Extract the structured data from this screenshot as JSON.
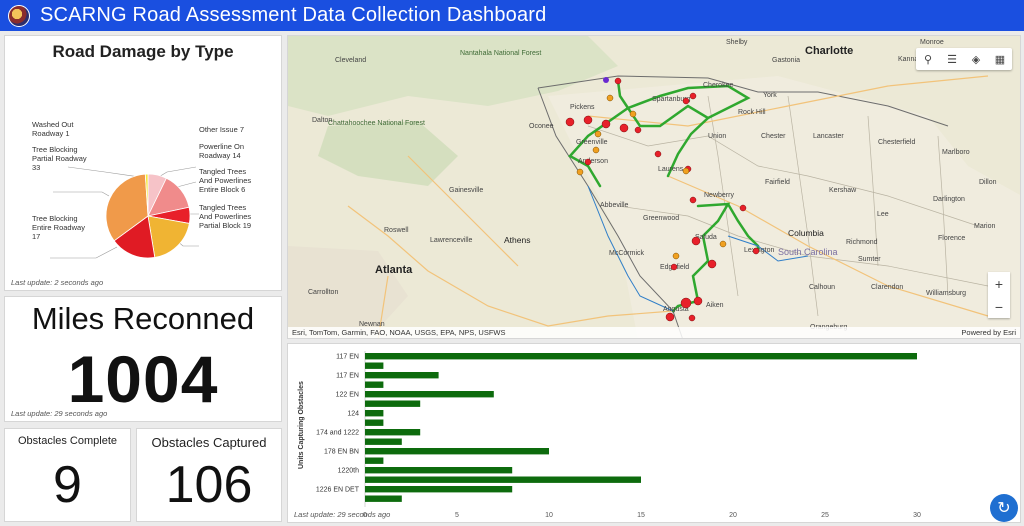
{
  "header": {
    "title": "SCARNG Road Assessment Data Collection Dashboard"
  },
  "pie": {
    "title": "Road Damage by Type",
    "last_update": "Last update: 2 seconds ago",
    "slices": [
      {
        "label": "Other Issue",
        "value": 7,
        "color": "#f6c3c8"
      },
      {
        "label": "Powerline On Roadway",
        "value": 14,
        "color": "#f08b8b"
      },
      {
        "label": "Tangled Trees And Powerlines Entire Block",
        "value": 6,
        "color": "#e8202a"
      },
      {
        "label": "Tangled Trees And Powerlines Partial Block",
        "value": 19,
        "color": "#f0b433"
      },
      {
        "label": "Tree Blocking Entire Roadway",
        "value": 17,
        "color": "#e01b24"
      },
      {
        "label": "Tree Blocking Partial Roadway",
        "value": 33,
        "color": "#f09a4a"
      },
      {
        "label": "Washed Out Roadway",
        "value": 1,
        "color": "#f5e83a"
      }
    ],
    "labels": {
      "washed": [
        "Washed Out",
        "Roadway 1"
      ],
      "tbpr": [
        "Tree Blocking",
        "Partial Roadway",
        "33"
      ],
      "tber": [
        "Tree Blocking",
        "Entire Roadway",
        "17"
      ],
      "other": [
        "Other Issue 7"
      ],
      "power": [
        "Powerline On",
        "Roadway 14"
      ],
      "tteb": [
        "Tangled Trees",
        "And Powerlines",
        "Entire Block 6"
      ],
      "ttpb": [
        "Tangled Trees",
        "And Powerlines",
        "Partial Block 19"
      ]
    }
  },
  "miles": {
    "title": "Miles Reconned",
    "value": "1004",
    "last_update": "Last update: 29 seconds ago"
  },
  "obstacles_complete": {
    "title": "Obstacles Complete",
    "value": "9"
  },
  "obstacles_captured": {
    "title": "Obstacles Captured",
    "value": "106"
  },
  "map": {
    "attribution": "Esri, TomTom, Garmin, FAO, NOAA, USGS, EPA, NPS, USFWS",
    "powered": "Powered by Esri",
    "zoom_in": "+",
    "zoom_out": "−",
    "cities_major": [
      "Atlanta",
      "Charlotte",
      "Columbia"
    ],
    "cities": [
      "Greenville",
      "Spartanburg",
      "Anderson",
      "Laurens",
      "Newberry",
      "Augusta",
      "Aiken",
      "Athens",
      "Gainesville",
      "Lexington",
      "Saluda",
      "Edgefield",
      "Greenwood",
      "Abbeville",
      "McCormick",
      "Pickens",
      "Oconee",
      "Union",
      "Chester",
      "Lancaster",
      "Fairfield",
      "Kershaw",
      "Lee",
      "Sumter",
      "Florence",
      "Marion",
      "Darlington",
      "Dillon",
      "Marlboro",
      "Chesterfield",
      "York",
      "Cherokee",
      "Shelby",
      "Gastonia",
      "Calhoun",
      "Clarendon",
      "Williamsburg",
      "Orangeburg",
      "Roswell",
      "Lawrenceville",
      "Carrollton",
      "Newnan",
      "Dalton",
      "Cleveland",
      "Monroe",
      "Rock Hill",
      "Kannapolis",
      "Richmond"
    ],
    "forests": [
      "Nantahala National Forest",
      "Chattahoochee National Forest",
      "South Carolina"
    ]
  },
  "bar_chart": {
    "y_title": "Units Capturing Obstacles",
    "last_update": "Last update: 29 seconds ago",
    "color": "#0d6b0d",
    "chart_data": {
      "type": "bar",
      "orientation": "horizontal",
      "categories": [
        "117 EN",
        "",
        "117 EN",
        "",
        "122 EN",
        "",
        "124",
        "",
        "174 and 1222",
        "",
        "178 EN BN",
        "",
        "1220th",
        "",
        "1226 EN DET",
        ""
      ],
      "values": [
        30,
        1,
        4,
        1,
        7,
        3,
        1,
        1,
        3,
        2,
        10,
        1,
        8,
        15,
        8,
        2
      ],
      "xlim": [
        0,
        30
      ],
      "xticks": [
        0,
        5,
        10,
        15,
        20,
        25,
        30
      ],
      "ylabel": "Units Capturing Obstacles"
    }
  }
}
